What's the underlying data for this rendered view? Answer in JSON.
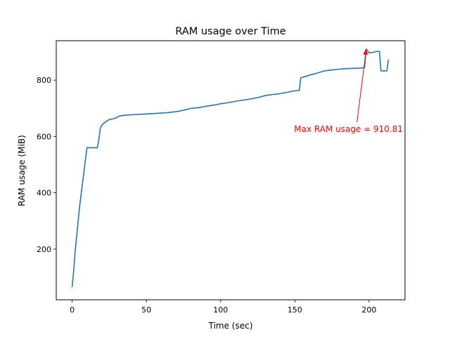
{
  "chart_data": {
    "type": "line",
    "title": "RAM usage over Time",
    "xlabel": "Time (sec)",
    "ylabel": "RAM usage (MiB)",
    "xlim": [
      -10.7,
      224.2
    ],
    "ylim": [
      20,
      940
    ],
    "xticks": [
      0,
      50,
      100,
      150,
      200
    ],
    "yticks": [
      200,
      400,
      600,
      800
    ],
    "grid": false,
    "series": [
      {
        "color": "#1f77b4",
        "x": [
          0,
          1,
          2,
          5,
          10,
          12,
          17,
          18,
          19,
          20,
          22,
          25,
          28,
          30,
          32,
          35,
          40,
          50,
          60,
          65,
          68,
          70,
          72,
          75,
          78,
          80,
          85,
          87,
          90,
          95,
          100,
          105,
          110,
          115,
          120,
          125,
          130,
          132,
          135,
          140,
          145,
          150,
          153,
          154,
          160,
          165,
          170,
          175,
          180,
          185,
          190,
          195,
          197,
          198,
          200,
          202,
          205,
          207,
          208,
          210,
          212,
          213
        ],
        "values": [
          65,
          120,
          190,
          350,
          560,
          560,
          560,
          590,
          630,
          640,
          650,
          660,
          663,
          667,
          673,
          675,
          677,
          680,
          683,
          685,
          687,
          688,
          690,
          693,
          697,
          700,
          702,
          704,
          707,
          711,
          716,
          720,
          725,
          729,
          733,
          738,
          745,
          747,
          749,
          752,
          757,
          762,
          764,
          808,
          818,
          825,
          833,
          836,
          839,
          841,
          842,
          843,
          845,
          910.81,
          897,
          898,
          902,
          902,
          833,
          833,
          833,
          873
        ]
      }
    ],
    "annotation": {
      "text": "Max RAM usage = 910.81",
      "x": 198,
      "y": 910.81,
      "text_x": 149.5,
      "text_y": 616,
      "color": "#ff0000"
    }
  }
}
